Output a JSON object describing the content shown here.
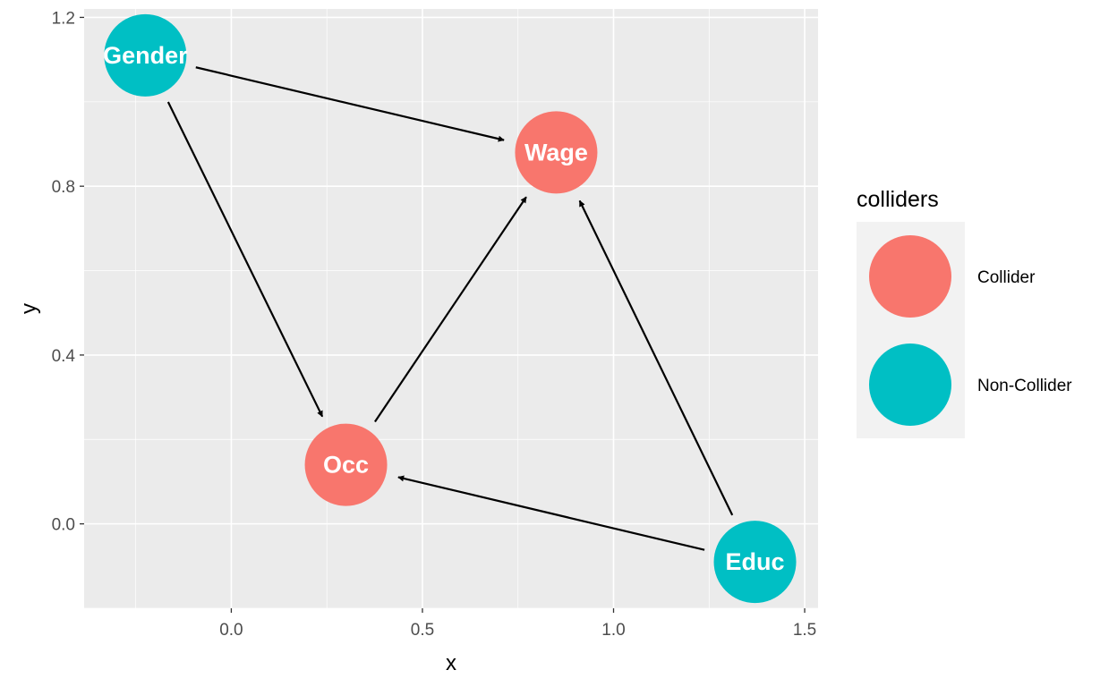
{
  "chart_data": {
    "type": "scatter",
    "subtype": "directed-acyclic-graph",
    "xlabel": "x",
    "ylabel": "y",
    "xlim": [
      -0.385,
      1.535
    ],
    "ylim": [
      -0.2,
      1.22
    ],
    "x_ticks": [
      0.0,
      0.5,
      1.0,
      1.5
    ],
    "x_tick_labels": [
      "0.0",
      "0.5",
      "1.0",
      "1.5"
    ],
    "y_ticks": [
      0.0,
      0.4,
      0.8,
      1.2
    ],
    "y_tick_labels": [
      "0.0",
      "0.4",
      "0.8",
      "1.2"
    ],
    "grid": true,
    "legend": {
      "title": "colliders",
      "placement": "right",
      "entries": [
        {
          "name": "Collider",
          "color": "#F8766D"
        },
        {
          "name": "Non-Collider",
          "color": "#00BFC4"
        }
      ]
    },
    "nodes": [
      {
        "name": "Gender",
        "x": -0.225,
        "y": 1.11,
        "group": "Non-Collider"
      },
      {
        "name": "Wage",
        "x": 0.85,
        "y": 0.88,
        "group": "Collider"
      },
      {
        "name": "Occ",
        "x": 0.3,
        "y": 0.14,
        "group": "Collider"
      },
      {
        "name": "Educ",
        "x": 1.37,
        "y": -0.09,
        "group": "Non-Collider"
      }
    ],
    "edges": [
      {
        "from": "Gender",
        "to": "Wage"
      },
      {
        "from": "Gender",
        "to": "Occ"
      },
      {
        "from": "Occ",
        "to": "Wage"
      },
      {
        "from": "Educ",
        "to": "Wage"
      },
      {
        "from": "Educ",
        "to": "Occ"
      }
    ]
  },
  "colors": {
    "panel_background": "#EBEBEB",
    "grid_line": "#FFFFFF",
    "legend_key_background": "#F2F2F2",
    "edge": "#000000"
  }
}
